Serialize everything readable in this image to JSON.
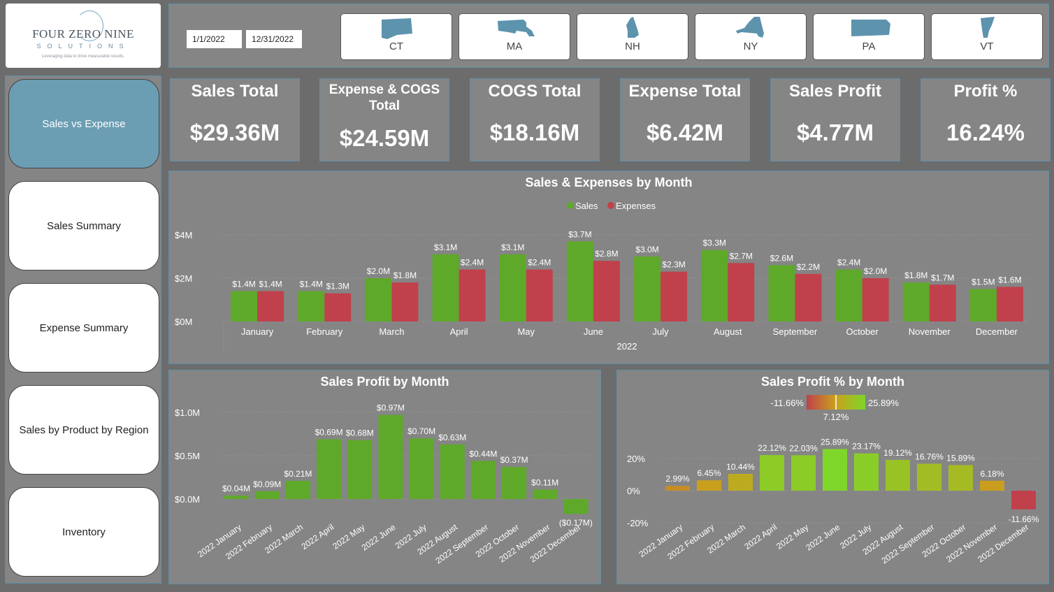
{
  "logo": {
    "line1": "FOUR ZERO NINE",
    "line2": "SOLUTIONS",
    "tagline": "Leveraging data to drive measurable results."
  },
  "nav": [
    {
      "label": "Sales vs Expense",
      "active": true
    },
    {
      "label": "Sales Summary",
      "active": false
    },
    {
      "label": "Expense Summary",
      "active": false
    },
    {
      "label": "Sales by Product by Region",
      "active": false
    },
    {
      "label": "Inventory",
      "active": false
    }
  ],
  "filters": {
    "start_date": "1/1/2022",
    "end_date": "12/31/2022"
  },
  "states": [
    "CT",
    "MA",
    "NH",
    "NY",
    "PA",
    "VT"
  ],
  "colors": {
    "state_icon": "#5d93ad",
    "sales": "#5ea92a",
    "expenses": "#c0414b",
    "accent": "#6b9db3",
    "border": "#5d8fa8"
  },
  "kpis": [
    {
      "title": "Sales Total",
      "value": "$29.36M"
    },
    {
      "title": "Expense & COGS Total",
      "value": "$24.59M"
    },
    {
      "title": "COGS Total",
      "value": "$18.16M"
    },
    {
      "title": "Expense Total",
      "value": "$6.42M"
    },
    {
      "title": "Sales Profit",
      "value": "$4.77M"
    },
    {
      "title": "Profit %",
      "value": "16.24%"
    }
  ],
  "chart_data": [
    {
      "type": "bar",
      "title": "Sales & Expenses by Month",
      "xlabel": "2022",
      "categories": [
        "January",
        "February",
        "March",
        "April",
        "May",
        "June",
        "July",
        "August",
        "September",
        "October",
        "November",
        "December"
      ],
      "series": [
        {
          "name": "Sales",
          "values": [
            1.4,
            1.4,
            2.0,
            3.1,
            3.1,
            3.7,
            3.0,
            3.3,
            2.6,
            2.4,
            1.8,
            1.5
          ],
          "labels": [
            "$1.4M",
            "$1.4M",
            "$2.0M",
            "$3.1M",
            "$3.1M",
            "$3.7M",
            "$3.0M",
            "$3.3M",
            "$2.6M",
            "$2.4M",
            "$1.8M",
            "$1.5M"
          ]
        },
        {
          "name": "Expenses",
          "values": [
            1.4,
            1.3,
            1.8,
            2.4,
            2.4,
            2.8,
            2.3,
            2.7,
            2.2,
            2.0,
            1.7,
            1.6
          ],
          "labels": [
            "$1.4M",
            "$1.3M",
            "$1.8M",
            "$2.4M",
            "$2.4M",
            "$2.8M",
            "$2.3M",
            "$2.7M",
            "$2.2M",
            "$2.0M",
            "$1.7M",
            "$1.6M"
          ]
        }
      ],
      "yticks": [
        "$0M",
        "$2M",
        "$4M"
      ],
      "ylim": [
        0,
        4
      ],
      "legend": "top-center"
    },
    {
      "type": "bar",
      "title": "Sales Profit by Month",
      "categories": [
        "2022 January",
        "2022 February",
        "2022 March",
        "2022 April",
        "2022 May",
        "2022 June",
        "2022 July",
        "2022 August",
        "2022 September",
        "2022 October",
        "2022 November",
        "2022 December"
      ],
      "values": [
        0.04,
        0.09,
        0.21,
        0.69,
        0.68,
        0.97,
        0.7,
        0.63,
        0.44,
        0.37,
        0.11,
        -0.17
      ],
      "labels": [
        "$0.04M",
        "$0.09M",
        "$0.21M",
        "$0.69M",
        "$0.68M",
        "$0.97M",
        "$0.70M",
        "$0.63M",
        "$0.44M",
        "$0.37M",
        "$0.11M",
        "($0.17M)"
      ],
      "yticks": [
        "$0.0M",
        "$0.5M",
        "$1.0M"
      ],
      "ylim": [
        -0.17,
        1.0
      ]
    },
    {
      "type": "bar",
      "title": "Sales Profit % by Month",
      "categories": [
        "2022 January",
        "2022 February",
        "2022 March",
        "2022 April",
        "2022 May",
        "2022 June",
        "2022 July",
        "2022 August",
        "2022 September",
        "2022 October",
        "2022 November",
        "2022 December"
      ],
      "values": [
        2.99,
        6.45,
        10.44,
        22.12,
        22.03,
        25.89,
        23.17,
        19.12,
        16.76,
        15.89,
        6.18,
        -11.66
      ],
      "labels": [
        "2.99%",
        "6.45%",
        "10.44%",
        "22.12%",
        "22.03%",
        "25.89%",
        "23.17%",
        "19.12%",
        "16.76%",
        "15.89%",
        "6.18%",
        "-11.66%"
      ],
      "yticks": [
        "-20%",
        "0%",
        "20%"
      ],
      "ylim": [
        -20,
        25.89
      ],
      "color_scale": {
        "min_label": "-11.66%",
        "max_label": "25.89%",
        "mid_label": "7.12%",
        "min": -11.66,
        "max": 25.89,
        "mid": 7.12
      }
    }
  ]
}
